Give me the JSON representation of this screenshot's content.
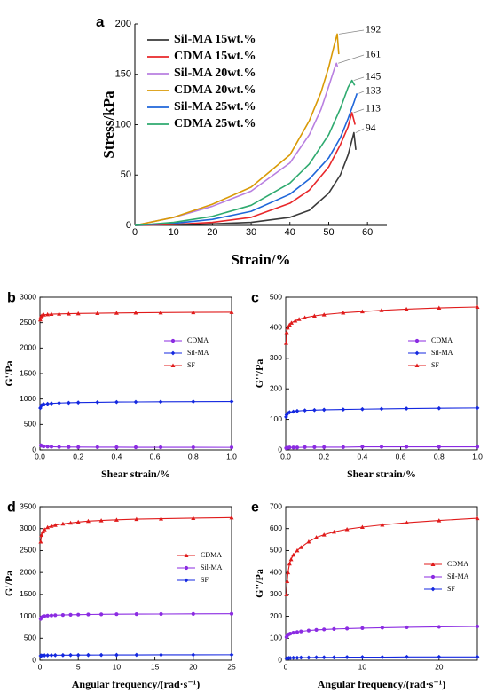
{
  "chart_data": [
    {
      "id": "a",
      "letter": "a",
      "type": "line",
      "xlabel": "Strain/%",
      "ylabel": "Stress/kPa",
      "xlim": [
        0,
        65
      ],
      "ylim": [
        0,
        200
      ],
      "xticks": [
        0,
        10,
        20,
        30,
        40,
        50,
        60
      ],
      "yticks": [
        0,
        50,
        100,
        150,
        200
      ],
      "legend_position": "top-left",
      "series": [
        {
          "name": "Sil-MA 15wt.%",
          "color": "#3a3a3a",
          "x": [
            0,
            10,
            20,
            30,
            40,
            45,
            50,
            53,
            55,
            56.5,
            57
          ],
          "y": [
            0,
            0.5,
            1.5,
            3,
            8,
            15,
            32,
            50,
            70,
            92,
            75
          ]
        },
        {
          "name": "CDMA 15wt.%",
          "color": "#e8272a",
          "x": [
            0,
            10,
            20,
            30,
            40,
            45,
            50,
            53,
            55,
            56,
            56.8
          ],
          "y": [
            0,
            1,
            3,
            8,
            22,
            35,
            58,
            80,
            98,
            112,
            100
          ]
        },
        {
          "name": "Sil-MA 20wt.%",
          "color": "#b87fe0",
          "x": [
            0,
            10,
            20,
            30,
            40,
            45,
            48,
            50,
            51.5,
            52,
            52.3
          ],
          "y": [
            0,
            8,
            19,
            34,
            62,
            90,
            115,
            138,
            156,
            161,
            157
          ]
        },
        {
          "name": "CDMA  20wt.%",
          "color": "#d99a06",
          "x": [
            0,
            10,
            20,
            30,
            40,
            45,
            48,
            50,
            51.5,
            52.2,
            52.6
          ],
          "y": [
            0,
            8,
            21,
            38,
            70,
            104,
            132,
            157,
            180,
            190,
            170
          ]
        },
        {
          "name": "Sil-MA 25wt.%",
          "color": "#1f66d9",
          "x": [
            0,
            10,
            20,
            30,
            40,
            45,
            50,
            53,
            55,
            56.5,
            57.3
          ],
          "y": [
            0,
            2,
            6,
            14,
            31,
            46,
            67,
            87,
            106,
            122,
            131
          ]
        },
        {
          "name": "CDMA  25wt.%",
          "color": "#2eaa6f",
          "x": [
            0,
            10,
            20,
            30,
            40,
            45,
            50,
            53,
            55,
            56,
            56.7
          ],
          "y": [
            0,
            3,
            9,
            20,
            42,
            61,
            90,
            116,
            137,
            144,
            139
          ]
        }
      ],
      "annotations": [
        {
          "text": "192",
          "series": "CDMA  20wt.%"
        },
        {
          "text": "161",
          "series": "Sil-MA 20wt.%"
        },
        {
          "text": "145",
          "series": "CDMA  25wt.%"
        },
        {
          "text": "133",
          "series": "Sil-MA 25wt.%"
        },
        {
          "text": "113",
          "series": "CDMA 15wt.%"
        },
        {
          "text": "94",
          "series": "Sil-MA 15wt.%"
        }
      ]
    },
    {
      "id": "b",
      "letter": "b",
      "type": "line",
      "xlabel": "Shear strain/%",
      "ylabel": "G'/Pa",
      "xlim": [
        0,
        1.0
      ],
      "ylim": [
        0,
        3000
      ],
      "xticks": [
        "0.0",
        "0.2",
        "0.4",
        "0.6",
        "0.8",
        "1.0"
      ],
      "yticks": [
        0,
        500,
        1000,
        1500,
        2000,
        2500,
        3000
      ],
      "legend_position": "middle-right",
      "series": [
        {
          "name": "CDMA",
          "color": "#8b2be2",
          "marker": "circle",
          "x": [
            0.005,
            0.01,
            0.02,
            0.04,
            0.06,
            0.1,
            0.15,
            0.2,
            0.3,
            0.4,
            0.5,
            0.63,
            0.8,
            1.0
          ],
          "y": [
            90,
            80,
            70,
            65,
            62,
            58,
            56,
            55,
            54,
            53,
            52,
            52,
            51,
            50
          ]
        },
        {
          "name": "Sil-MA",
          "color": "#1428e0",
          "marker": "diamond",
          "x": [
            0.002,
            0.005,
            0.01,
            0.02,
            0.04,
            0.06,
            0.1,
            0.15,
            0.2,
            0.3,
            0.4,
            0.5,
            0.63,
            0.8,
            1.0
          ],
          "y": [
            820,
            860,
            880,
            895,
            905,
            912,
            920,
            925,
            930,
            935,
            940,
            942,
            945,
            948,
            950
          ]
        },
        {
          "name": "SF",
          "color": "#e01b1b",
          "marker": "triangle",
          "x": [
            0.002,
            0.005,
            0.01,
            0.02,
            0.04,
            0.06,
            0.1,
            0.15,
            0.2,
            0.3,
            0.4,
            0.5,
            0.63,
            0.8,
            1.0
          ],
          "y": [
            2560,
            2620,
            2640,
            2655,
            2662,
            2668,
            2672,
            2676,
            2680,
            2685,
            2690,
            2694,
            2698,
            2702,
            2705
          ]
        }
      ]
    },
    {
      "id": "c",
      "letter": "c",
      "type": "line",
      "xlabel": "Shear strain/%",
      "ylabel": "G''/Pa",
      "xlim": [
        0,
        1.0
      ],
      "ylim": [
        0,
        500
      ],
      "xticks": [
        "0.0",
        "0.2",
        "0.4",
        "0.6",
        "0.8",
        "1.0"
      ],
      "yticks": [
        0,
        100,
        200,
        300,
        400,
        500
      ],
      "legend_position": "middle-right",
      "series": [
        {
          "name": "CDMA",
          "color": "#8b2be2",
          "marker": "circle",
          "x": [
            0.002,
            0.005,
            0.01,
            0.02,
            0.04,
            0.06,
            0.1,
            0.15,
            0.2,
            0.3,
            0.4,
            0.5,
            0.63,
            0.8,
            1.0
          ],
          "y": [
            6,
            7,
            7,
            8,
            8,
            8,
            9,
            9,
            9,
            9,
            10,
            10,
            10,
            10,
            10
          ]
        },
        {
          "name": "Sil-MA",
          "color": "#1428e0",
          "marker": "diamond",
          "x": [
            0.002,
            0.005,
            0.01,
            0.02,
            0.04,
            0.06,
            0.1,
            0.15,
            0.2,
            0.3,
            0.4,
            0.5,
            0.63,
            0.8,
            1.0
          ],
          "y": [
            108,
            115,
            120,
            123,
            125,
            127,
            129,
            130,
            131,
            132,
            133,
            134,
            135,
            136,
            137
          ]
        },
        {
          "name": "SF",
          "color": "#e01b1b",
          "marker": "triangle",
          "x": [
            0.002,
            0.005,
            0.01,
            0.02,
            0.03,
            0.05,
            0.07,
            0.1,
            0.15,
            0.2,
            0.3,
            0.4,
            0.5,
            0.63,
            0.8,
            1.0
          ],
          "y": [
            350,
            385,
            400,
            410,
            416,
            423,
            428,
            433,
            439,
            443,
            449,
            453,
            457,
            461,
            465,
            468
          ]
        }
      ]
    },
    {
      "id": "d",
      "letter": "d",
      "type": "line",
      "xlabel": "Angular frequency/(rad·s⁻¹)",
      "ylabel": "G'/Pa",
      "xlim": [
        0,
        25
      ],
      "ylim": [
        0,
        3500
      ],
      "xticks": [
        0,
        5,
        10,
        15,
        20,
        25
      ],
      "yticks": [
        0,
        500,
        1000,
        1500,
        2000,
        2500,
        3000,
        3500
      ],
      "legend_position": "middle-right",
      "series": [
        {
          "name": "CDMA",
          "color": "#e01b1b",
          "marker": "triangle",
          "x": [
            0.1,
            0.2,
            0.4,
            0.6,
            1,
            1.5,
            2,
            3,
            4,
            5,
            6.3,
            8,
            10,
            12.6,
            15.8,
            20,
            25
          ],
          "y": [
            2700,
            2850,
            2930,
            2980,
            3030,
            3060,
            3080,
            3110,
            3130,
            3150,
            3170,
            3185,
            3200,
            3215,
            3225,
            3238,
            3250
          ]
        },
        {
          "name": "Sil-MA",
          "color": "#8b2be2",
          "marker": "circle",
          "x": [
            0.1,
            0.2,
            0.4,
            0.6,
            1,
            1.5,
            2,
            3,
            4,
            5,
            6.3,
            8,
            10,
            12.6,
            15.8,
            20,
            25
          ],
          "y": [
            940,
            975,
            995,
            1005,
            1015,
            1020,
            1025,
            1030,
            1035,
            1038,
            1042,
            1045,
            1048,
            1050,
            1052,
            1055,
            1058
          ]
        },
        {
          "name": "SF",
          "color": "#1428e0",
          "marker": "diamond",
          "x": [
            0.1,
            0.2,
            0.4,
            0.6,
            1,
            1.5,
            2,
            3,
            4,
            5,
            6.3,
            8,
            10,
            12.6,
            15.8,
            20,
            25
          ],
          "y": [
            100,
            105,
            108,
            110,
            112,
            113,
            114,
            115,
            116,
            117,
            118,
            119,
            120,
            121,
            122,
            123,
            124
          ]
        }
      ]
    },
    {
      "id": "e",
      "letter": "e",
      "type": "line",
      "xlabel": "Angular frequency/(rad·s⁻¹)",
      "ylabel": "G''/Pa",
      "xlim": [
        0,
        25
      ],
      "ylim": [
        0,
        700
      ],
      "xticks": [
        0,
        10,
        20
      ],
      "yticks": [
        0,
        100,
        200,
        300,
        400,
        500,
        600,
        700
      ],
      "legend_position": "middle-right",
      "series": [
        {
          "name": "CDMA",
          "color": "#e01b1b",
          "marker": "triangle",
          "x": [
            0.1,
            0.2,
            0.3,
            0.5,
            0.7,
            1,
            1.5,
            2,
            3,
            4,
            5,
            6.3,
            8,
            10,
            12.6,
            15.8,
            20,
            25
          ],
          "y": [
            300,
            360,
            400,
            440,
            460,
            480,
            500,
            515,
            540,
            560,
            572,
            585,
            597,
            607,
            617,
            627,
            637,
            647
          ]
        },
        {
          "name": "Sil-MA",
          "color": "#8b2be2",
          "marker": "circle",
          "x": [
            0.1,
            0.2,
            0.4,
            0.6,
            1,
            1.5,
            2,
            3,
            4,
            5,
            6.3,
            8,
            10,
            12.6,
            15.8,
            20,
            25
          ],
          "y": [
            105,
            112,
            118,
            121,
            125,
            128,
            131,
            135,
            138,
            140,
            142,
            144,
            146,
            148,
            150,
            152,
            154
          ]
        },
        {
          "name": "SF",
          "color": "#1428e0",
          "marker": "diamond",
          "x": [
            0.1,
            0.2,
            0.4,
            0.6,
            1,
            1.5,
            2,
            3,
            4,
            5,
            6.3,
            8,
            10,
            12.6,
            15.8,
            20,
            25
          ],
          "y": [
            8,
            9,
            10,
            10,
            11,
            11,
            12,
            12,
            13,
            13,
            13,
            14,
            14,
            14,
            15,
            15,
            15
          ]
        }
      ]
    }
  ]
}
